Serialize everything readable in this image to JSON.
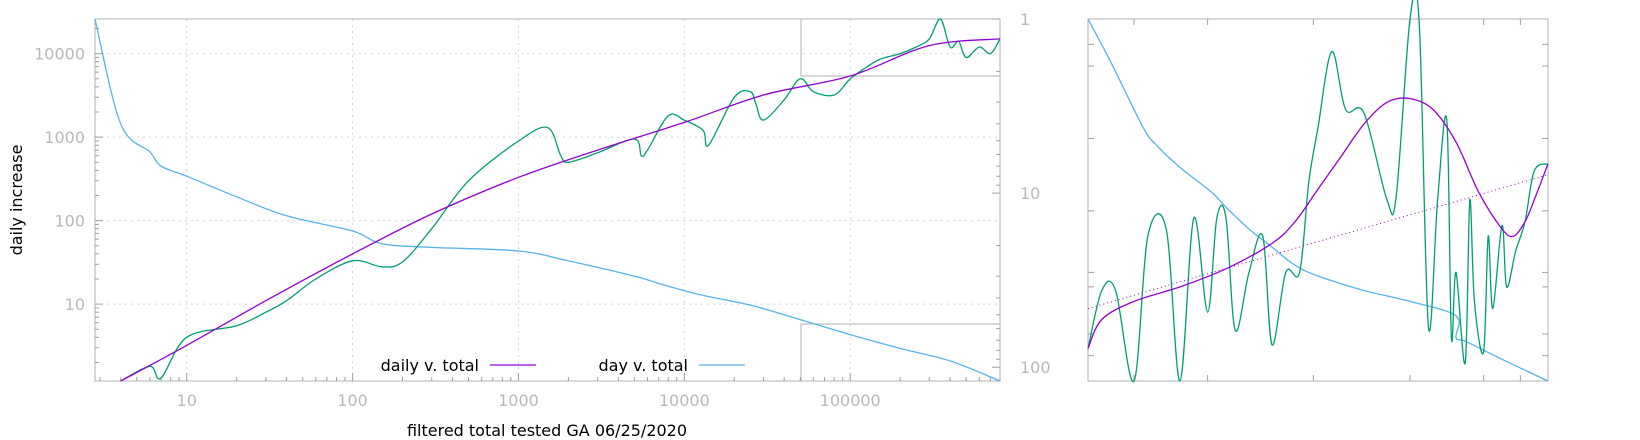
{
  "chart_data": [
    {
      "type": "line",
      "title": "",
      "xlabel": "filtered total tested GA 06/25/2020",
      "ylabel": "daily increase",
      "x_scale": "log",
      "y_scale": "log",
      "y2_scale": "log-reversed",
      "xlim": [
        2.8,
        800000
      ],
      "ylim": [
        1.2,
        26000
      ],
      "y2lim": [
        1,
        120
      ],
      "x_ticks": [
        "10",
        "100",
        "1000",
        "10000",
        "100000"
      ],
      "y_ticks": [
        "10",
        "100",
        "1000",
        "10000"
      ],
      "y2_ticks": [
        "1",
        "10",
        "100"
      ],
      "grid": true,
      "legend": "bottom-center",
      "colors": {
        "daily_v_total": "#9400d3",
        "day_v_total": "#56b4e9",
        "daily_raw": "#009e73"
      },
      "series": [
        {
          "name": "daily v. total",
          "axis": "left",
          "x": [
            4,
            10,
            30,
            100,
            300,
            1000,
            3000,
            10000,
            30000,
            100000,
            300000,
            800000
          ],
          "y": [
            1.2,
            3.2,
            11,
            40,
            120,
            330,
            700,
            1500,
            3200,
            5400,
            12500,
            15000
          ]
        },
        {
          "name": "day v. total",
          "axis": "right",
          "x": [
            2.8,
            4,
            6,
            7,
            10,
            20,
            40,
            100,
            150,
            300,
            1000,
            2000,
            5000,
            7000,
            12000,
            25000,
            40000,
            100000,
            200000,
            400000,
            800000
          ],
          "y": [
            1,
            4,
            5.8,
            7,
            8,
            10.5,
            13.5,
            16.5,
            19.5,
            20.5,
            21.5,
            24.5,
            30,
            33,
            38,
            44,
            50,
            65,
            78,
            92,
            120
          ]
        },
        {
          "axis": "left",
          "x": [
            4,
            6,
            7,
            10,
            20,
            30,
            40,
            60,
            100,
            150,
            200,
            300,
            500,
            1000,
            1500,
            1800,
            2000,
            3000,
            5000,
            5500,
            6000,
            8000,
            10000,
            13000,
            14000,
            20000,
            25000,
            27000,
            30000,
            40000,
            50000,
            60000,
            80000,
            100000,
            120000,
            150000,
            200000,
            250000,
            300000,
            350000,
            400000,
            450000,
            500000,
            600000,
            700000,
            800000
          ],
          "y": [
            1.2,
            1.8,
            1.3,
            4,
            5.5,
            8,
            11,
            20,
            33,
            28,
            32,
            80,
            300,
            900,
            1300,
            600,
            500,
            650,
            950,
            600,
            700,
            1800,
            1600,
            1200,
            800,
            3000,
            3500,
            2500,
            1600,
            2800,
            5000,
            3500,
            3200,
            5000,
            6500,
            8500,
            10000,
            12000,
            15000,
            26000,
            12000,
            14000,
            9000,
            12000,
            10000,
            15000
          ]
        }
      ],
      "inset": {
        "type": "line",
        "series": [
          {
            "name": "daily v. total",
            "x": [
              0,
              0.03,
              0.1,
              0.2,
              0.3,
              0.4,
              0.45,
              0.5,
              0.55,
              0.6,
              0.65,
              0.7,
              0.75,
              0.8,
              0.85,
              0.9,
              0.925,
              0.95,
              0.97,
              1
            ],
            "y": [
              0.91,
              0.83,
              0.78,
              0.74,
              0.69,
              0.62,
              0.56,
              0.47,
              0.38,
              0.29,
              0.23,
              0.22,
              0.25,
              0.34,
              0.48,
              0.58,
              0.6,
              0.56,
              0.5,
              0.4
            ]
          },
          {
            "name": "day v. total",
            "x": [
              0,
              0.05,
              0.12,
              0.15,
              0.2,
              0.27,
              0.3,
              0.35,
              0.4,
              0.45,
              0.5,
              0.6,
              0.7,
              0.8,
              0.8,
              0.82,
              0.9,
              1
            ],
            "y": [
              0,
              0.12,
              0.3,
              0.35,
              0.41,
              0.48,
              0.52,
              0.58,
              0.63,
              0.68,
              0.71,
              0.75,
              0.78,
              0.82,
              0.88,
              0.89,
              0.94,
              1
            ]
          },
          {
            "x": [
              0,
              0.03,
              0.06,
              0.1,
              0.13,
              0.17,
              0.2,
              0.23,
              0.26,
              0.28,
              0.3,
              0.32,
              0.35,
              0.38,
              0.4,
              0.43,
              0.46,
              0.48,
              0.5,
              0.53,
              0.56,
              0.6,
              0.65,
              0.67,
              0.7,
              0.72,
              0.74,
              0.76,
              0.78,
              0.79,
              0.8,
              0.82,
              0.83,
              0.84,
              0.86,
              0.87,
              0.88,
              0.9,
              0.91,
              0.93,
              0.95,
              0.97,
              1
            ],
            "y": [
              0.91,
              0.75,
              0.75,
              1,
              0.6,
              0.58,
              1,
              0.55,
              0.81,
              0.55,
              0.55,
              0.86,
              0.7,
              0.6,
              0.9,
              0.7,
              0.7,
              0.45,
              0.3,
              0.09,
              0.25,
              0.26,
              0.5,
              0.49,
              0,
              0.01,
              0.85,
              0.5,
              0.28,
              0.88,
              0.7,
              0.95,
              0.5,
              0.78,
              0.92,
              0.6,
              0.8,
              0.57,
              0.74,
              0.64,
              0.56,
              0.42,
              0.4
            ]
          },
          {
            "style": "dotted",
            "x": [
              0,
              1
            ],
            "y": [
              0.8,
              0.43
            ]
          }
        ]
      }
    }
  ]
}
